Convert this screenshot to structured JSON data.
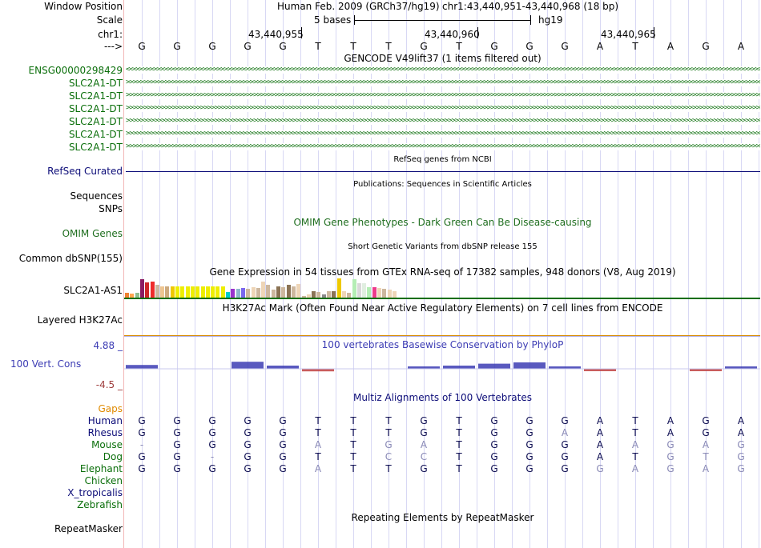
{
  "header": {
    "window_position_label": "Window Position",
    "scale_label": "Scale",
    "chrom_label": "chr1:",
    "arrow_label": "--->",
    "assembly_text": "Human Feb. 2009 (GRCh37/hg19)",
    "position_text": "chr1:43,440,951-43,440,968 (18 bp)",
    "scale_text": "5 bases",
    "db_text": "hg19",
    "coords": [
      "43,440,955",
      "43,440,960",
      "43,440,965"
    ]
  },
  "sequence": [
    "G",
    "G",
    "G",
    "G",
    "G",
    "T",
    "T",
    "T",
    "G",
    "T",
    "G",
    "G",
    "G",
    "A",
    "T",
    "A",
    "G",
    "A"
  ],
  "colors": {
    "gene_green": "#0a6e0a",
    "refseq_blue": "#0c0c78",
    "omim_green": "#1f6e1f",
    "gaps_orange": "#e08a00",
    "phylop_blue": "#3c3cb4",
    "phylop_red": "#9e3c3c",
    "track_line": "#d8d8f4",
    "left_border": "#f2b8b8"
  },
  "gencode": {
    "title": "GENCODE V49lift37 (1 items filtered out)",
    "genes": [
      {
        "name": "ENSG00000298429",
        "strand": "-"
      },
      {
        "name": "SLC2A1-DT",
        "strand": "+"
      },
      {
        "name": "SLC2A1-DT",
        "strand": "+"
      },
      {
        "name": "SLC2A1-DT",
        "strand": "+"
      },
      {
        "name": "SLC2A1-DT",
        "strand": "+"
      },
      {
        "name": "SLC2A1-DT",
        "strand": "+"
      },
      {
        "name": "SLC2A1-DT",
        "strand": "+"
      }
    ]
  },
  "refseq": {
    "label": "RefSeq Curated",
    "title": "RefSeq genes from NCBI"
  },
  "pubs": {
    "label_sequences": "Sequences",
    "label_snps": "SNPs",
    "title": "Publications: Sequences in Scientific Articles"
  },
  "omim": {
    "title": "OMIM Gene Phenotypes - Dark Green Can Be Disease-causing",
    "label": "OMIM Genes"
  },
  "dbsnp": {
    "title": "Short Genetic Variants from dbSNP release 155",
    "label": "Common dbSNP(155)"
  },
  "gtex": {
    "title": "Gene Expression in 54 tissues from GTEx RNA-seq of 17382 samples, 948 donors (V8, Aug 2019)",
    "label": "SLC2A1-AS1",
    "bars": [
      {
        "level": 0.25,
        "color": "#f08030"
      },
      {
        "level": 0.2,
        "color": "#ffa54f"
      },
      {
        "level": 0.25,
        "color": "#8fbc8f"
      },
      {
        "level": 0.95,
        "color": "#8b1c62"
      },
      {
        "level": 0.8,
        "color": "#cd2626"
      },
      {
        "level": 0.85,
        "color": "#ee2c2c"
      },
      {
        "level": 0.65,
        "color": "#cdb79e"
      },
      {
        "level": 0.6,
        "color": "#eec591"
      },
      {
        "level": 0.6,
        "color": "#cdaa7d"
      },
      {
        "level": 0.6,
        "color": "#eec900"
      },
      {
        "level": 0.6,
        "color": "#eeee00"
      },
      {
        "level": 0.6,
        "color": "#eeee00"
      },
      {
        "level": 0.6,
        "color": "#eeee00"
      },
      {
        "level": 0.6,
        "color": "#eeee00"
      },
      {
        "level": 0.6,
        "color": "#eeee00"
      },
      {
        "level": 0.6,
        "color": "#eeee00"
      },
      {
        "level": 0.6,
        "color": "#eeee00"
      },
      {
        "level": 0.6,
        "color": "#eeee00"
      },
      {
        "level": 0.6,
        "color": "#eeee00"
      },
      {
        "level": 0.6,
        "color": "#eeee00"
      },
      {
        "level": 0.3,
        "color": "#00cdcd"
      },
      {
        "level": 0.45,
        "color": "#9a32cd"
      },
      {
        "level": 0.45,
        "color": "#8db6cd"
      },
      {
        "level": 0.5,
        "color": "#7a67ee"
      },
      {
        "level": 0.45,
        "color": "#cdb79e"
      },
      {
        "level": 0.55,
        "color": "#eed5b7"
      },
      {
        "level": 0.5,
        "color": "#cdb79e"
      },
      {
        "level": 0.85,
        "color": "#eed5b7"
      },
      {
        "level": 0.65,
        "color": "#cdb79e"
      },
      {
        "level": 0.4,
        "color": "#cdb79e"
      },
      {
        "level": 0.6,
        "color": "#8b7355"
      },
      {
        "level": 0.55,
        "color": "#cdb79e"
      },
      {
        "level": 0.65,
        "color": "#8b7355"
      },
      {
        "level": 0.6,
        "color": "#cdb79e"
      },
      {
        "level": 0.7,
        "color": "#eed5b7"
      },
      {
        "level": 0.1,
        "color": "#cdb79e"
      },
      {
        "level": 0.15,
        "color": "#eed5b7"
      },
      {
        "level": 0.35,
        "color": "#8b7355"
      },
      {
        "level": 0.3,
        "color": "#cdb79e"
      },
      {
        "level": 0.15,
        "color": "#8b8989"
      },
      {
        "level": 0.35,
        "color": "#cdb79e"
      },
      {
        "level": 0.35,
        "color": "#8b7355"
      },
      {
        "level": 1.0,
        "color": "#eec900"
      },
      {
        "level": 0.35,
        "color": "#eed5b7"
      },
      {
        "level": 0.25,
        "color": "#cdb79e"
      },
      {
        "level": 0.95,
        "color": "#b4eeb4"
      },
      {
        "level": 0.75,
        "color": "#d9d9d9"
      },
      {
        "level": 0.75,
        "color": "#e0eee0"
      },
      {
        "level": 0.55,
        "color": "#b4eeb4"
      },
      {
        "level": 0.55,
        "color": "#ee3a8c"
      },
      {
        "level": 0.5,
        "color": "#eed5b7"
      },
      {
        "level": 0.45,
        "color": "#cdb79e"
      },
      {
        "level": 0.4,
        "color": "#eed5b7"
      },
      {
        "level": 0.35,
        "color": "#eed5b7"
      }
    ]
  },
  "h3k27ac": {
    "title": "H3K27Ac Mark (Often Found Near Active Regulatory Elements) on 7 cell lines from ENCODE",
    "label": "Layered H3K27Ac"
  },
  "phylop": {
    "title": "100 vertebrates Basewise Conservation by PhyloP",
    "max_label": "4.88 _",
    "min_label": "-4.5 _",
    "label": "100 Vert. Cons",
    "scores": [
      0.6,
      0,
      0,
      1.1,
      0.5,
      -0.4,
      0,
      0,
      0.2,
      0.5,
      0.8,
      1.0,
      0.2,
      -0.2,
      0,
      0,
      -0.3,
      0.3
    ]
  },
  "multiz": {
    "title": "Multiz Alignments of 100 Vertebrates",
    "gaps_label": "Gaps",
    "species": [
      {
        "name": "Human",
        "bases": [
          "G",
          "G",
          "G",
          "G",
          "G",
          "T",
          "T",
          "T",
          "G",
          "T",
          "G",
          "G",
          "G",
          "A",
          "T",
          "A",
          "G",
          "A"
        ],
        "diff": []
      },
      {
        "name": "Rhesus",
        "bases": [
          "G",
          "G",
          "G",
          "G",
          "G",
          "T",
          "T",
          "T",
          "G",
          "T",
          "G",
          "G",
          "A",
          "A",
          "T",
          "A",
          "G",
          "A"
        ],
        "diff": [
          12
        ]
      },
      {
        "name": "Mouse",
        "bases": [
          "-",
          "G",
          "G",
          "G",
          "G",
          "A",
          "T",
          "G",
          "A",
          "T",
          "G",
          "G",
          "G",
          "A",
          "A",
          "G",
          "A",
          "G"
        ],
        "diff": [
          0,
          5,
          7,
          8,
          14,
          15,
          16,
          17
        ]
      },
      {
        "name": "Dog",
        "bases": [
          "G",
          "G",
          "-",
          "G",
          "G",
          "T",
          "T",
          "C",
          "C",
          "T",
          "G",
          "G",
          "G",
          "A",
          "T",
          "G",
          "T",
          "G"
        ],
        "diff": [
          2,
          7,
          8,
          15,
          16,
          17
        ]
      },
      {
        "name": "Elephant",
        "bases": [
          "G",
          "G",
          "G",
          "G",
          "G",
          "A",
          "T",
          "T",
          "G",
          "T",
          "G",
          "G",
          "G",
          "G",
          "A",
          "G",
          "A",
          "G"
        ],
        "diff": [
          5,
          13,
          14,
          15,
          16,
          17
        ]
      },
      {
        "name": "Chicken",
        "bases": [],
        "diff": []
      },
      {
        "name": "X_tropicalis",
        "bases": [],
        "diff": []
      },
      {
        "name": "Zebrafish",
        "bases": [],
        "diff": []
      }
    ]
  },
  "repeatmasker": {
    "title": "Repeating Elements by RepeatMasker",
    "label": "RepeatMasker"
  }
}
